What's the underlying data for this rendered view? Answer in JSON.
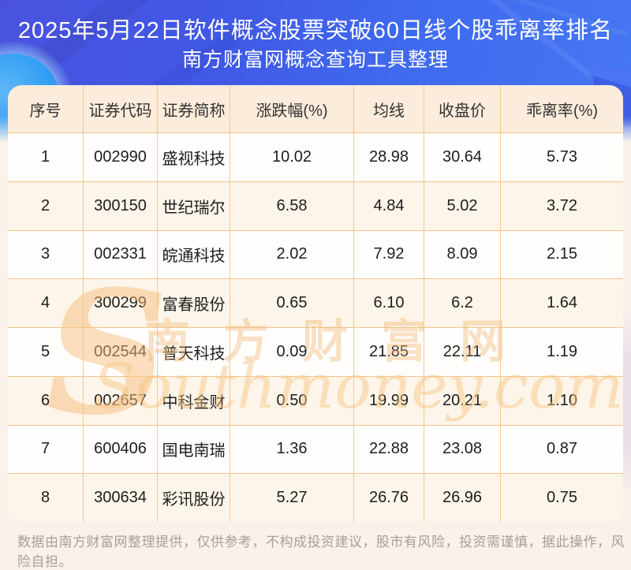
{
  "title": {
    "line1": "2025年5月22日软件概念股票突破60日线个股乖离率排名",
    "line2": "南方财富网概念查询工具整理"
  },
  "chart_data": {
    "type": "table",
    "title": "2025年5月22日软件概念股票突破60日线个股乖离率排名",
    "subtitle": "南方财富网概念查询工具整理",
    "columns": [
      "序号",
      "证券代码",
      "证券简称",
      "涨跌幅(%)",
      "均线",
      "收盘价",
      "乖离率(%)"
    ],
    "rows": [
      [
        "1",
        "002990",
        "盛视科技",
        "10.02",
        "28.98",
        "30.64",
        "5.73"
      ],
      [
        "2",
        "300150",
        "世纪瑞尔",
        "6.58",
        "4.84",
        "5.02",
        "3.72"
      ],
      [
        "3",
        "002331",
        "皖通科技",
        "2.02",
        "7.92",
        "8.09",
        "2.15"
      ],
      [
        "4",
        "300299",
        "富春股份",
        "0.65",
        "6.10",
        "6.2",
        "1.64"
      ],
      [
        "5",
        "002544",
        "普天科技",
        "0.09",
        "21.85",
        "22.11",
        "1.19"
      ],
      [
        "6",
        "002657",
        "中科金财",
        "0.50",
        "19.99",
        "20.21",
        "1.10"
      ],
      [
        "7",
        "600406",
        "国电南瑞",
        "1.36",
        "22.88",
        "23.08",
        "0.87"
      ],
      [
        "8",
        "300634",
        "彩讯股份",
        "5.27",
        "26.76",
        "26.96",
        "0.75"
      ]
    ]
  },
  "watermark": {
    "swoosh": "S",
    "cn": "南方财富网",
    "en": "Southmoney.com"
  },
  "footer": {
    "disclaimer": "数据由南方财富网整理提供，仅供参考，不构成投资建议，股市有风险，投资需谨慎，据此操作，风险自担。"
  },
  "colors": {
    "band_blue_left": "#4a52dd",
    "band_blue_right": "#4677f2",
    "azure_blob": "#2d9cf5",
    "header_peach": "#fcecdb",
    "row_even_peach": "#fdf5e9",
    "row_odd_white": "#fffefd",
    "grid_orange": "#f6c897",
    "watermark_orange": "#f0b773",
    "title_text": "#ffffff",
    "cell_text": "#1d1d1d",
    "footer_gray": "#a6a099",
    "page_bottom_bg": "#f8f2eb"
  }
}
